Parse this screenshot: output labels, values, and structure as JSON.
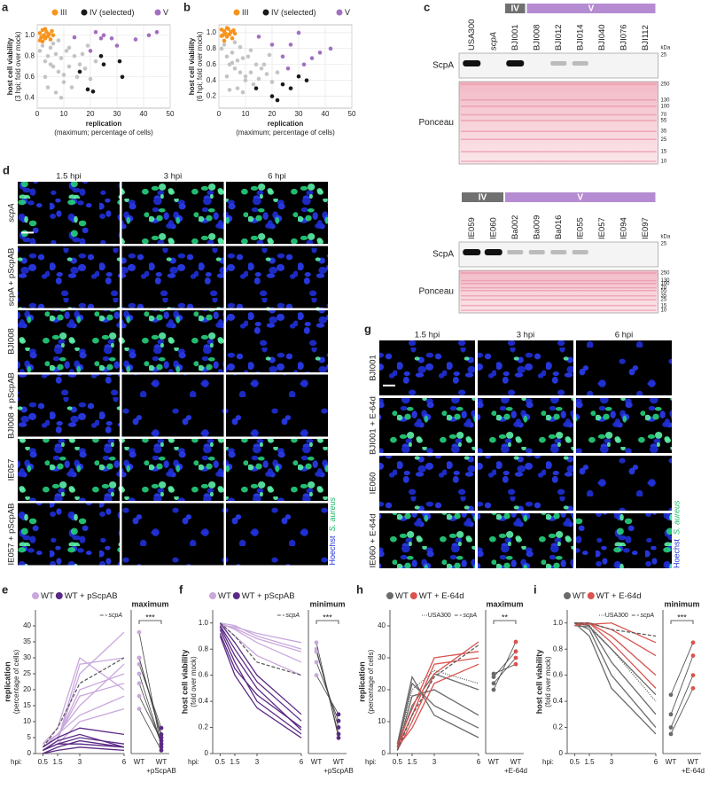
{
  "panels": {
    "a": {
      "label": "a",
      "type": "scatter",
      "grid": true,
      "xlabel": "replication",
      "xlabel_note": "(maximum; percentage of cells)",
      "ylabel": "host cell viability",
      "ylabel_note": "(3 hpi; fold over mock)",
      "xlim": [
        0,
        50
      ],
      "xticks": [
        0,
        10,
        20,
        30,
        40,
        50
      ],
      "ylim": [
        0.3,
        1.1
      ],
      "yticks": [
        0.4,
        0.6,
        0.8,
        {
          "value": 1,
          "label": "1.0"
        }
      ],
      "series": [
        {
          "color": "#c4c4c4",
          "x": [
            1,
            2,
            3,
            4,
            5,
            6,
            7,
            8,
            3,
            5,
            9,
            10,
            12,
            6,
            8,
            11,
            14,
            15,
            13,
            16,
            18,
            20,
            7,
            9,
            17,
            22,
            4,
            10,
            12,
            19
          ],
          "y": [
            0.85,
            0.9,
            0.75,
            0.8,
            0.88,
            0.7,
            0.82,
            0.65,
            0.6,
            0.72,
            0.78,
            0.55,
            0.7,
            0.92,
            0.95,
            0.85,
            0.8,
            0.6,
            0.5,
            0.72,
            0.68,
            0.58,
            0.45,
            0.4,
            0.82,
            0.75,
            0.5,
            0.62,
            0.88,
            0.9
          ]
        },
        {
          "name": "III",
          "color": "#f7941d",
          "x": [
            1,
            1.5,
            2,
            2.5,
            3,
            3.5,
            4,
            4.5,
            5,
            2,
            3,
            1,
            6,
            5.5
          ],
          "y": [
            1.02,
            0.98,
            1.05,
            1,
            0.97,
            1.03,
            0.99,
            1.01,
            0.96,
            0.94,
            1.06,
            0.95,
            1,
            1.04
          ]
        },
        {
          "name": "IV (selected)",
          "color": "#1a1a1a",
          "x": [
            16,
            19,
            21,
            24,
            25,
            31,
            32
          ],
          "y": [
            0.65,
            0.48,
            0.46,
            0.8,
            0.72,
            0.75,
            0.6
          ]
        },
        {
          "name": "V",
          "color": "#a36fc1",
          "x": [
            14,
            20,
            24,
            25,
            28,
            30,
            37,
            42,
            45,
            22
          ],
          "y": [
            0.98,
            0.85,
            0.97,
            1,
            0.97,
            0.9,
            0.96,
            1,
            1.03,
            1.03
          ]
        }
      ]
    },
    "b": {
      "label": "b",
      "type": "scatter",
      "grid": true,
      "xlabel": "replication",
      "xlabel_note": "(maximum; percentage of cells)",
      "ylabel": "host cell viability",
      "ylabel_note": "(6 hpi; fold over mock)",
      "xlim": [
        0,
        50
      ],
      "xticks": [
        0,
        10,
        20,
        30,
        40,
        50
      ],
      "ylim": [
        0.05,
        1.1
      ],
      "yticks": [
        0.2,
        0.4,
        0.6,
        0.8,
        {
          "value": 1,
          "label": "1.0"
        }
      ],
      "series": [
        {
          "color": "#c4c4c4",
          "x": [
            1,
            2,
            3,
            4,
            5,
            6,
            7,
            8,
            3,
            5,
            9,
            10,
            12,
            6,
            8,
            11,
            14,
            15,
            13,
            16,
            18,
            20,
            7,
            9,
            17,
            22,
            4,
            10,
            12,
            19
          ],
          "y": [
            0.8,
            0.85,
            0.7,
            0.6,
            0.75,
            0.55,
            0.65,
            0.5,
            0.45,
            0.62,
            0.68,
            0.4,
            0.5,
            0.88,
            0.82,
            0.7,
            0.6,
            0.42,
            0.35,
            0.55,
            0.48,
            0.38,
            0.3,
            0.25,
            0.6,
            0.5,
            0.28,
            0.45,
            0.78,
            0.72
          ]
        },
        {
          "name": "III",
          "color": "#f7941d",
          "x": [
            1,
            1.5,
            2,
            2.5,
            3,
            3.5,
            4,
            4.5,
            5,
            2,
            3,
            1,
            6,
            5.5
          ],
          "y": [
            1.04,
            0.97,
            1.02,
            0.99,
            0.95,
            1.05,
            0.98,
            1.01,
            0.93,
            0.9,
            1.06,
            0.96,
            0.99,
            1.03
          ]
        },
        {
          "name": "IV (selected)",
          "color": "#1a1a1a",
          "x": [
            14,
            20,
            22,
            24,
            27,
            30,
            33
          ],
          "y": [
            0.3,
            0.2,
            0.15,
            0.35,
            0.3,
            0.45,
            0.4
          ]
        },
        {
          "name": "V",
          "color": "#a36fc1",
          "x": [
            15,
            20,
            24,
            27,
            30,
            32,
            38,
            42,
            26,
            35
          ],
          "y": [
            0.95,
            0.85,
            0.7,
            0.85,
            1,
            0.6,
            0.75,
            0.8,
            0.55,
            0.68
          ]
        }
      ]
    },
    "c": {
      "label": "c",
      "unit": "kDa",
      "rows": [
        "ScpA",
        "Ponceau"
      ],
      "blots": [
        {
          "ungrouped": [
            "USA300",
            "scpA"
          ],
          "groups": [
            {
              "name": "IV",
              "strains": [
                "BJI001"
              ]
            },
            {
              "name": "V",
              "strains": [
                "BJI008",
                "BJI012",
                "BJI014",
                "BJI040",
                "BJI076",
                "BJI112"
              ]
            }
          ],
          "scpa_markers": [
            25
          ],
          "ponceau_markers": [
            250,
            130,
            100,
            70,
            55,
            35,
            25,
            15,
            10
          ]
        },
        {
          "ungrouped": [],
          "groups": [
            {
              "name": "IV",
              "strains": [
                "IE059",
                "IE060"
              ]
            },
            {
              "name": "V",
              "strains": [
                "Ba002",
                "Ba009",
                "Ba016",
                "IE055",
                "IE057",
                "IE094",
                "IE097"
              ]
            }
          ],
          "scpa_markers": [
            25
          ],
          "ponceau_markers": [
            250,
            130,
            100,
            70,
            55,
            35,
            25,
            15,
            10
          ]
        }
      ]
    },
    "d": {
      "label": "d",
      "columns": [
        "1.5 hpi",
        "3 hpi",
        "6 hpi"
      ],
      "rows": [
        "scpA",
        "scpA + pScpAB",
        "BJI008",
        "BJI008 + pScpAB",
        "IE057",
        "IE057 + pScpAB"
      ],
      "stain": [
        "Hoechst",
        "S. aureus"
      ]
    },
    "g": {
      "label": "g",
      "columns": [
        "1.5 hpi",
        "3 hpi",
        "6 hpi"
      ],
      "rows": [
        "BJI001",
        "BJI001 + E-64d",
        "IE060",
        "IE060 + E-64d"
      ],
      "stain": [
        "Hoechst",
        "S. aureus"
      ]
    },
    "e": {
      "label": "e",
      "type": "line",
      "ylabel": "replication",
      "ylabel_note": "(percentage of cells)",
      "x": [
        0.5,
        1.5,
        3,
        6
      ],
      "xlim": [
        0,
        6
      ],
      "xticks": [
        0.5,
        1.5,
        3,
        6
      ],
      "x_prefix": "hpi:",
      "ylim": [
        0,
        45
      ],
      "yticks": [
        0,
        5,
        10,
        15,
        20,
        25,
        30,
        35,
        40
      ],
      "series": [
        {
          "name": "WT",
          "color": "#c9a8dd",
          "lines": [
            [
              2,
              5,
              18,
              22
            ],
            [
              1,
              4,
              25,
              38
            ],
            [
              3,
              8,
              30,
              20
            ],
            [
              2,
              6,
              15,
              28
            ],
            [
              1,
              3,
              10,
              14
            ],
            [
              2,
              5,
              20,
              25
            ],
            [
              3,
              6,
              12,
              18
            ],
            [
              1,
              4,
              28,
              30
            ]
          ]
        },
        {
          "name": "WT + pScpAB",
          "color": "#5b2a86",
          "lines": [
            [
              1,
              3,
              5,
              3
            ],
            [
              0,
              2,
              4,
              2
            ],
            [
              1,
              4,
              6,
              2
            ],
            [
              2,
              5,
              8,
              6
            ],
            [
              0,
              1,
              2,
              1
            ],
            [
              1,
              3,
              3,
              2
            ]
          ]
        }
      ],
      "reference": [
        {
          "name": "scpA",
          "dash": "4,2",
          "values": [
            2,
            8,
            22,
            30
          ]
        }
      ],
      "paired": {
        "title": "maximum",
        "categories": [
          "WT",
          "WT"
        ],
        "note": "+pScpAB",
        "significance": "***",
        "values": [
          [
            22,
            3
          ],
          [
            38,
            2
          ],
          [
            30,
            6
          ],
          [
            28,
            8
          ],
          [
            14,
            1
          ],
          [
            25,
            3
          ],
          [
            18,
            4
          ],
          [
            30,
            5
          ]
        ]
      }
    },
    "f": {
      "label": "f",
      "type": "line",
      "ylabel": "host cell viability",
      "ylabel_note": "(fold over mock)",
      "x": [
        0.5,
        1.5,
        3,
        6
      ],
      "xlim": [
        0,
        6
      ],
      "xticks": [
        0.5,
        1.5,
        3,
        6
      ],
      "x_prefix": "hpi:",
      "ylim": [
        0,
        1.1
      ],
      "yticks": [
        0,
        0.2,
        0.4,
        0.6,
        0.8,
        {
          "value": 1,
          "label": "1.0"
        }
      ],
      "series": [
        {
          "name": "WT",
          "color": "#c9a8dd",
          "lines": [
            [
              1,
              0.98,
              0.9,
              0.8
            ],
            [
              1,
              0.95,
              0.85,
              0.7
            ],
            [
              0.98,
              0.97,
              0.92,
              0.85
            ],
            [
              1,
              0.9,
              0.75,
              0.6
            ],
            [
              0.99,
              0.96,
              0.88,
              0.78
            ]
          ]
        },
        {
          "name": "WT + pScpAB",
          "color": "#5b2a86",
          "lines": [
            [
              0.95,
              0.7,
              0.4,
              0.15
            ],
            [
              0.98,
              0.8,
              0.55,
              0.25
            ],
            [
              0.9,
              0.6,
              0.35,
              0.12
            ],
            [
              1,
              0.85,
              0.6,
              0.3
            ],
            [
              0.92,
              0.65,
              0.45,
              0.2
            ],
            [
              0.97,
              0.75,
              0.5,
              0.18
            ]
          ]
        }
      ],
      "reference": [
        {
          "name": "scpA",
          "dash": "4,2",
          "values": [
            1,
            0.9,
            0.7,
            0.6
          ]
        }
      ],
      "paired": {
        "title": "minimum",
        "categories": [
          "WT",
          "WT"
        ],
        "note": "+pScpAB",
        "significance": "***",
        "values": [
          [
            0.8,
            0.15
          ],
          [
            0.7,
            0.25
          ],
          [
            0.85,
            0.12
          ],
          [
            0.6,
            0.3
          ],
          [
            0.78,
            0.2
          ]
        ]
      }
    },
    "h": {
      "label": "h",
      "type": "line",
      "ylabel": "replication",
      "ylabel_note": "(percentage of cells)",
      "x": [
        0.5,
        1.5,
        3,
        6
      ],
      "xlim": [
        0,
        6
      ],
      "xticks": [
        0.5,
        1.5,
        3,
        6
      ],
      "x_prefix": "hpi:",
      "ylim": [
        0,
        45
      ],
      "yticks": [
        0,
        10,
        20,
        30,
        40
      ],
      "series": [
        {
          "name": "WT",
          "color": "#6b6b6b",
          "lines": [
            [
              2,
              22,
              15,
              8
            ],
            [
              1,
              18,
              20,
              12
            ],
            [
              3,
              24,
              12,
              5
            ],
            [
              2,
              15,
              25,
              20
            ]
          ]
        },
        {
          "name": "WT + E-64d",
          "color": "#d9534f",
          "lines": [
            [
              2,
              12,
              28,
              30
            ],
            [
              1,
              10,
              25,
              35
            ],
            [
              3,
              14,
              30,
              32
            ],
            [
              2,
              8,
              22,
              28
            ]
          ]
        }
      ],
      "reference": [
        {
          "name": "USA300",
          "dash": "1,1.5",
          "values": [
            2,
            20,
            26,
            22
          ]
        },
        {
          "name": "scpA",
          "dash": "4,2",
          "values": [
            1,
            12,
            24,
            34
          ]
        }
      ],
      "paired": {
        "title": "maximum",
        "categories": [
          "WT",
          "WT"
        ],
        "note": "+E-64d",
        "significance": "**",
        "values": [
          [
            22,
            30
          ],
          [
            20,
            35
          ],
          [
            24,
            32
          ],
          [
            25,
            28
          ]
        ]
      }
    },
    "i": {
      "label": "i",
      "type": "line",
      "ylabel": "host cell viability",
      "ylabel_note": "(fold over mock)",
      "x": [
        0.5,
        1.5,
        3,
        6
      ],
      "xlim": [
        0,
        6
      ],
      "xticks": [
        0.5,
        1.5,
        3,
        6
      ],
      "x_prefix": "hpi:",
      "ylim": [
        0,
        1.1
      ],
      "yticks": [
        0,
        0.2,
        0.4,
        0.6,
        0.8,
        {
          "value": 1,
          "label": "1.0"
        }
      ],
      "series": [
        {
          "name": "WT",
          "color": "#6b6b6b",
          "lines": [
            [
              1,
              0.98,
              0.7,
              0.3
            ],
            [
              1,
              0.95,
              0.6,
              0.2
            ],
            [
              0.98,
              0.97,
              0.8,
              0.45
            ],
            [
              1,
              0.9,
              0.5,
              0.15
            ]
          ]
        },
        {
          "name": "WT + E-64d",
          "color": "#d9534f",
          "lines": [
            [
              1,
              1,
              0.95,
              0.75
            ],
            [
              0.98,
              1,
              0.9,
              0.6
            ],
            [
              1,
              0.99,
              1,
              0.85
            ],
            [
              1,
              1,
              0.85,
              0.5
            ]
          ]
        }
      ],
      "reference": [
        {
          "name": "USA300",
          "dash": "1,1.5",
          "values": [
            1,
            0.98,
            0.8,
            0.4
          ]
        },
        {
          "name": "scpA",
          "dash": "4,2",
          "values": [
            1,
            1,
            0.95,
            0.9
          ]
        }
      ],
      "paired": {
        "title": "minimum",
        "categories": [
          "WT",
          "WT"
        ],
        "note": "+E-64d",
        "significance": "***",
        "values": [
          [
            0.3,
            0.75
          ],
          [
            0.2,
            0.6
          ],
          [
            0.45,
            0.85
          ],
          [
            0.15,
            0.5
          ]
        ]
      }
    }
  }
}
